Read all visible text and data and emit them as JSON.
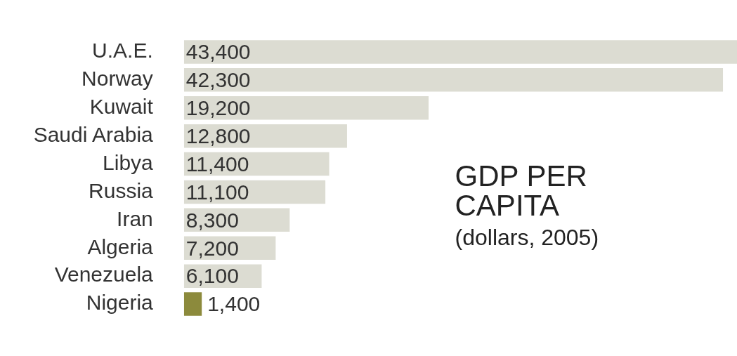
{
  "chart_data": {
    "type": "bar",
    "orientation": "horizontal",
    "title": "GDP PER CAPITA",
    "subtitle": "(dollars, 2005)",
    "categories": [
      "U.A.E.",
      "Norway",
      "Kuwait",
      "Saudi Arabia",
      "Libya",
      "Russia",
      "Iran",
      "Algeria",
      "Venezuela",
      "Nigeria"
    ],
    "values": [
      43400,
      42300,
      19200,
      12800,
      11400,
      11100,
      8300,
      7200,
      6100,
      1400
    ],
    "colors": [
      "#dcdcd2",
      "#dcdcd2",
      "#dcdcd2",
      "#dcdcd2",
      "#dcdcd2",
      "#dcdcd2",
      "#dcdcd2",
      "#dcdcd2",
      "#dcdcd2",
      "#8c8a3c"
    ],
    "value_labels": [
      "43,400",
      "42,300",
      "19,200",
      "12,800",
      "11,400",
      "11,100",
      "8,300",
      "7,200",
      "6,100",
      "1,400"
    ],
    "legend": false
  }
}
